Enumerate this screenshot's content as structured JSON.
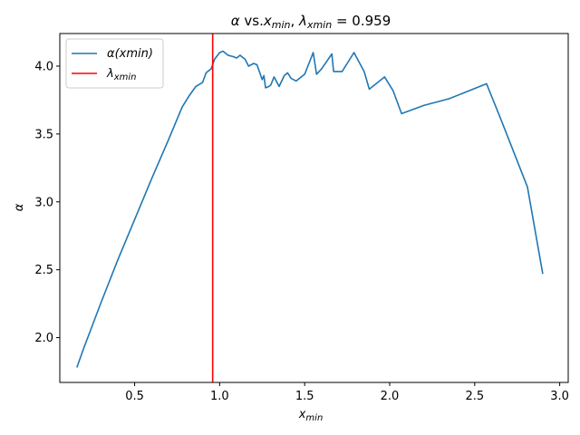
{
  "chart_data": {
    "type": "line",
    "title": "α vs.xmin, λxmin = 0.959",
    "title_parts": {
      "alpha": "α",
      "vs": " vs.",
      "x": "x",
      "min_sub": "min",
      "comma": ", ",
      "lambda": "λ",
      "xmin_sub": "xmin",
      "eq": " = 0.959"
    },
    "xlabel": "xmin",
    "xlabel_parts": {
      "x": "x",
      "sub": "min"
    },
    "ylabel": "α",
    "xlim": [
      0.06,
      3.05
    ],
    "ylim": [
      1.67,
      4.24
    ],
    "xticks": [
      0.5,
      1.0,
      1.5,
      2.0,
      2.5,
      3.0
    ],
    "xtick_labels": [
      "0.5",
      "1.0",
      "1.5",
      "2.0",
      "2.5",
      "3.0"
    ],
    "yticks": [
      2.0,
      2.5,
      3.0,
      3.5,
      4.0
    ],
    "ytick_labels": [
      "2.0",
      "2.5",
      "3.0",
      "3.5",
      "4.0"
    ],
    "grid": false,
    "legend_position": "top-left",
    "series": [
      {
        "name": "α(xmin)",
        "color": "#1f77b4",
        "x": [
          0.16,
          0.2,
          0.3,
          0.4,
          0.5,
          0.6,
          0.7,
          0.78,
          0.82,
          0.86,
          0.9,
          0.92,
          0.95,
          0.97,
          1.0,
          1.02,
          1.05,
          1.08,
          1.1,
          1.12,
          1.15,
          1.17,
          1.2,
          1.22,
          1.25,
          1.26,
          1.27,
          1.29,
          1.3,
          1.32,
          1.35,
          1.38,
          1.4,
          1.42,
          1.45,
          1.5,
          1.55,
          1.57,
          1.6,
          1.66,
          1.67,
          1.72,
          1.75,
          1.79,
          1.82,
          1.85,
          1.88,
          1.97,
          2.02,
          2.07,
          2.2,
          2.35,
          2.57,
          2.66,
          2.81,
          2.9
        ],
        "y": [
          1.78,
          1.92,
          2.25,
          2.57,
          2.87,
          3.17,
          3.46,
          3.7,
          3.78,
          3.85,
          3.88,
          3.95,
          3.98,
          4.05,
          4.1,
          4.11,
          4.08,
          4.07,
          4.06,
          4.08,
          4.05,
          4.0,
          4.02,
          4.01,
          3.9,
          3.93,
          3.84,
          3.85,
          3.86,
          3.92,
          3.85,
          3.93,
          3.95,
          3.91,
          3.89,
          3.94,
          4.1,
          3.94,
          3.98,
          4.09,
          3.96,
          3.96,
          4.02,
          4.1,
          4.03,
          3.96,
          3.83,
          3.92,
          3.82,
          3.65,
          3.71,
          3.76,
          3.87,
          3.59,
          3.11,
          2.47
        ]
      }
    ],
    "vline": {
      "name": "λxmin",
      "x": 0.959,
      "color": "#ff0000"
    }
  },
  "legend": {
    "items": [
      {
        "label_main": "α(xmin)"
      },
      {
        "label_main": "λ",
        "label_sub": "xmin"
      }
    ]
  }
}
